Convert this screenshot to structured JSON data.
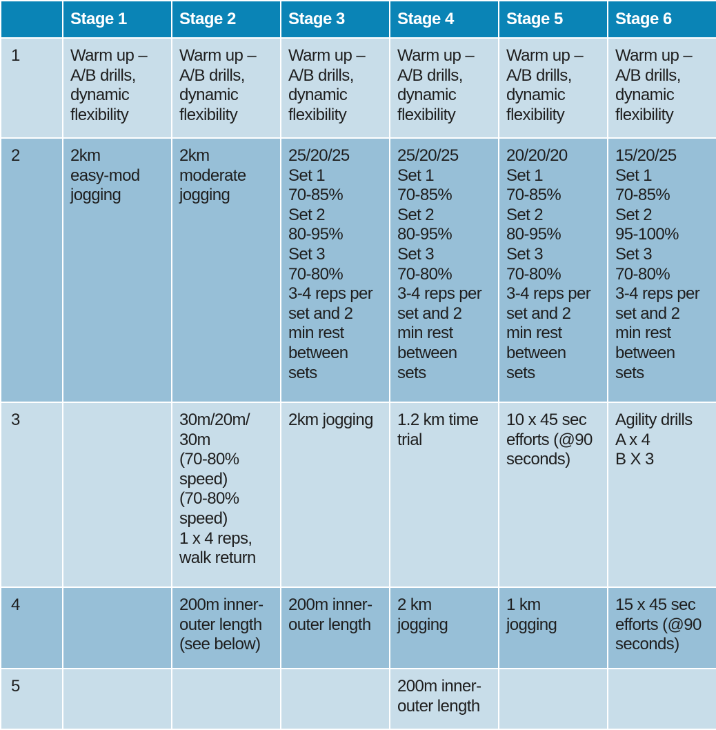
{
  "columns": [
    "",
    "Stage 1",
    "Stage 2",
    "Stage 3",
    "Stage 4",
    "Stage 5",
    "Stage 6"
  ],
  "rows": [
    {
      "label": "1",
      "cells": [
        "Warm up –\nA/B drills,\ndynamic\nflexibility",
        "Warm up –\nA/B drills,\ndynamic\nflexibility",
        "Warm up –\nA/B drills,\ndynamic\nflexibility",
        "Warm up –\nA/B drills,\ndynamic\nflexibility",
        "Warm up –\nA/B drills,\ndynamic\nflexibility",
        "Warm up –\nA/B drills,\ndynamic\nflexibility"
      ]
    },
    {
      "label": "2",
      "cells": [
        "2km\neasy-mod\njogging",
        "2km\nmoderate\njogging",
        "25/20/25\nSet 1\n70-85%\nSet 2\n80-95%\nSet 3\n70-80%\n3-4 reps per\nset and 2\nmin rest\nbetween\nsets",
        "25/20/25\nSet 1\n70-85%\nSet 2\n80-95%\nSet 3\n70-80%\n3-4 reps per\nset and 2\nmin rest\nbetween\nsets",
        "20/20/20\nSet 1\n70-85%\nSet 2\n80-95%\nSet 3\n70-80%\n3-4 reps per\nset and 2\nmin rest\nbetween\nsets",
        "15/20/25\nSet 1\n70-85%\nSet 2\n95-100%\nSet 3\n70-80%\n3-4 reps per\nset and 2\nmin rest\nbetween\nsets"
      ]
    },
    {
      "label": "3",
      "cells": [
        "",
        "30m/20m/\n30m\n(70-80%\nspeed)\n(70-80%\nspeed)\n1 x 4 reps,\nwalk return",
        "2km jogging",
        "1.2 km time\ntrial",
        "10 x 45 sec\nefforts (@90\nseconds)",
        "Agility drills\nA x 4\nB X 3"
      ]
    },
    {
      "label": "4",
      "cells": [
        "",
        "200m inner-\nouter length\n(see below)",
        "200m inner-\nouter length",
        "2 km\njogging",
        "1 km\njogging",
        "15 x 45 sec\nefforts (@90\nseconds)"
      ]
    },
    {
      "label": "5",
      "cells": [
        "",
        "",
        "",
        "200m inner-\nouter length",
        "",
        ""
      ]
    }
  ]
}
